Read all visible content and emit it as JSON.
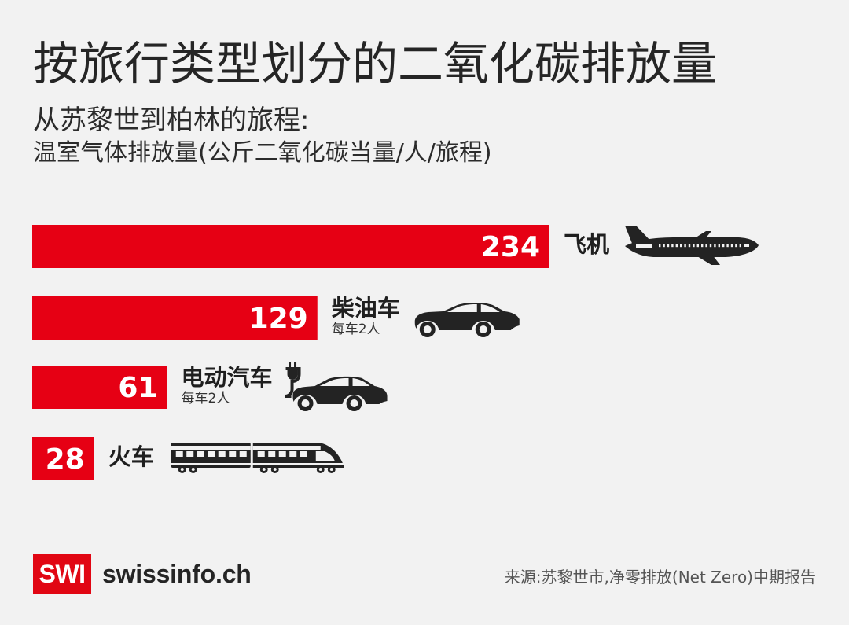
{
  "header": {
    "title": "按旅行类型划分的二氧化碳排放量",
    "subtitle": "从苏黎世到柏林的旅程:",
    "unit": "温室气体排放量(公斤二氧化碳当量/人/旅程)"
  },
  "chart_data": {
    "type": "bar",
    "orientation": "horizontal",
    "categories": [
      "飞机",
      "柴油车",
      "电动汽车",
      "火车"
    ],
    "subcategories": [
      "",
      "每车2人",
      "每车2人",
      ""
    ],
    "values": [
      234,
      129,
      61,
      28
    ],
    "icons": [
      "airplane-icon",
      "car-icon",
      "electric-car-icon",
      "train-icon"
    ],
    "bar_color": "#e60014",
    "label_color": "#ffffff",
    "category_label_color": "#1f1f1f"
  },
  "brand": {
    "logo_short": "SWI",
    "logo_text": "swissinfo.ch",
    "accent": "#e10613"
  },
  "source": {
    "text": "来源:苏黎世市,净零排放(Net Zero)中期报告"
  }
}
